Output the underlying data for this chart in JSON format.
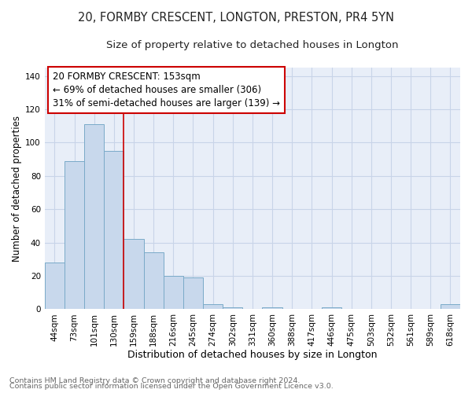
{
  "title1": "20, FORMBY CRESCENT, LONGTON, PRESTON, PR4 5YN",
  "title2": "Size of property relative to detached houses in Longton",
  "xlabel": "Distribution of detached houses by size in Longton",
  "ylabel": "Number of detached properties",
  "bin_labels": [
    "44sqm",
    "73sqm",
    "101sqm",
    "130sqm",
    "159sqm",
    "188sqm",
    "216sqm",
    "245sqm",
    "274sqm",
    "302sqm",
    "331sqm",
    "360sqm",
    "388sqm",
    "417sqm",
    "446sqm",
    "475sqm",
    "503sqm",
    "532sqm",
    "561sqm",
    "589sqm",
    "618sqm"
  ],
  "bin_values": [
    28,
    89,
    111,
    95,
    42,
    34,
    20,
    19,
    3,
    1,
    0,
    1,
    0,
    0,
    1,
    0,
    0,
    0,
    0,
    0,
    3
  ],
  "bar_color": "#c8d8ec",
  "bar_edge_color": "#7aaac8",
  "bar_edge_width": 0.7,
  "vline_color": "#cc0000",
  "vline_x_index": 4,
  "annotation_line1": "20 FORMBY CRESCENT: 153sqm",
  "annotation_line2": "← 69% of detached houses are smaller (306)",
  "annotation_line3": "31% of semi-detached houses are larger (139) →",
  "annotation_box_color": "#cc0000",
  "annotation_bg": "#ffffff",
  "annotation_fontsize": 8.5,
  "ylim": [
    0,
    145
  ],
  "yticks": [
    0,
    20,
    40,
    60,
    80,
    100,
    120,
    140
  ],
  "grid_color": "#c8d4e8",
  "background_color": "#e8eef8",
  "footer1": "Contains HM Land Registry data © Crown copyright and database right 2024.",
  "footer2": "Contains public sector information licensed under the Open Government Licence v3.0.",
  "title1_fontsize": 10.5,
  "title2_fontsize": 9.5,
  "xlabel_fontsize": 9,
  "ylabel_fontsize": 8.5,
  "tick_fontsize": 7.5,
  "footer_fontsize": 6.8
}
